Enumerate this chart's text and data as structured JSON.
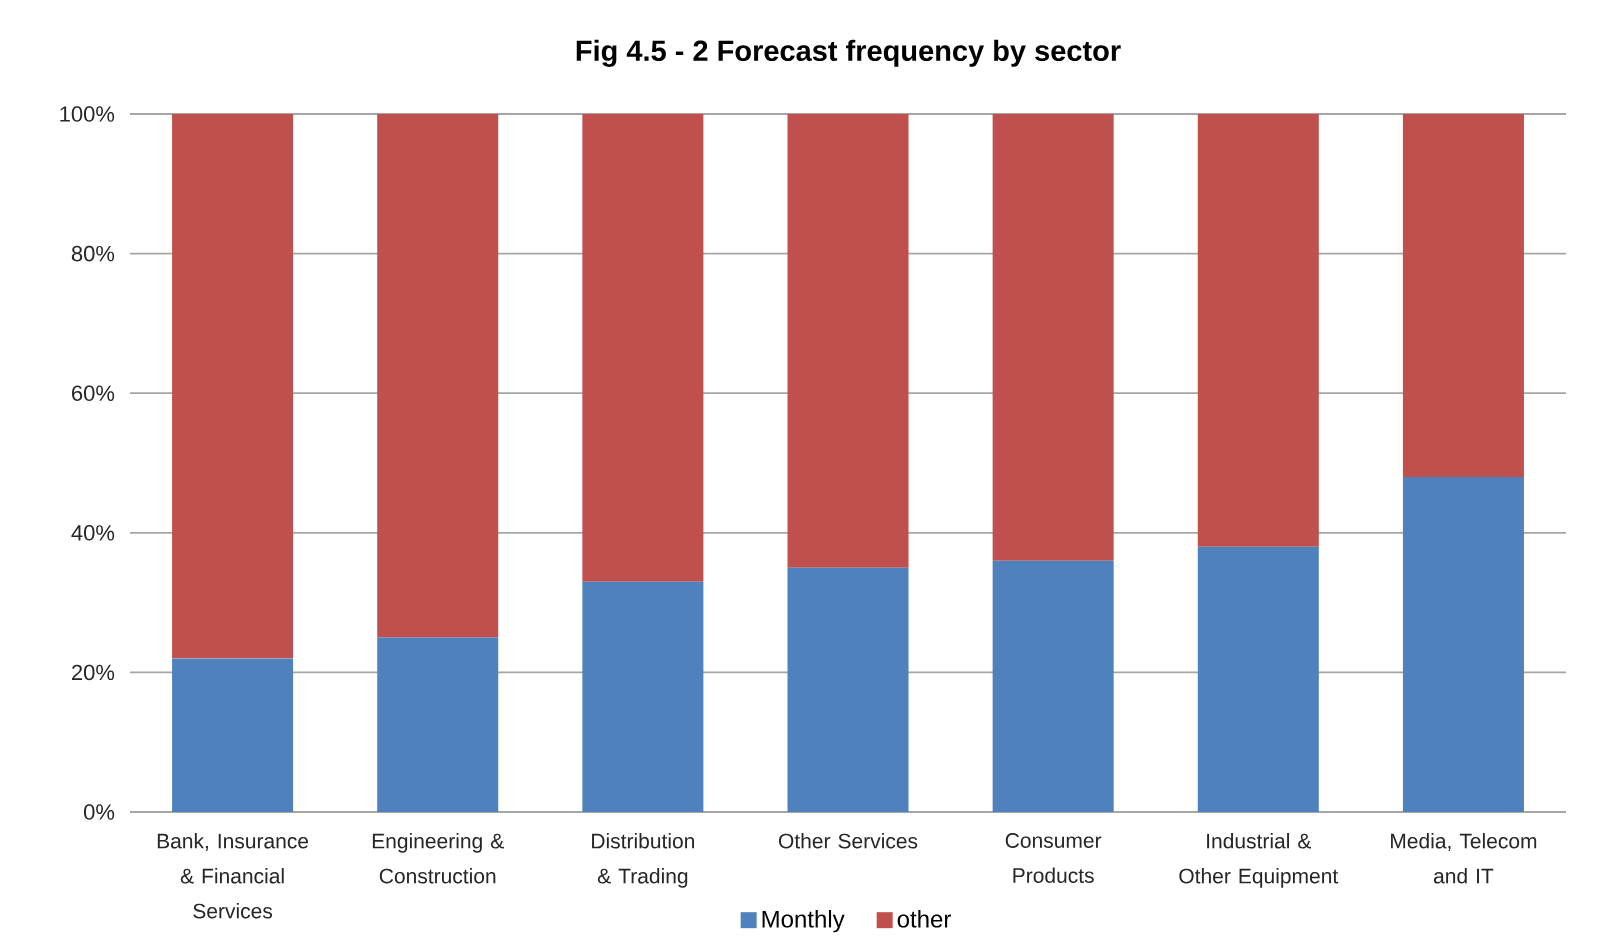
{
  "chart_data": {
    "type": "bar",
    "title": "Fig 4.5 - 2 Forecast frequency by sector",
    "categories": [
      "Bank, Insurance & Financial Services",
      "Engineering & Construction",
      "Distribution & Trading",
      "Other Services",
      "Consumer Products",
      "Industrial & Other Equipment",
      "Media, Telecom and IT"
    ],
    "series": [
      {
        "name": "Monthly",
        "color": "#4f81bd",
        "values": [
          22,
          25,
          33,
          35,
          36,
          38,
          48
        ]
      },
      {
        "name": "other",
        "color": "#c0504d",
        "values": [
          78,
          75,
          67,
          65,
          64,
          62,
          52
        ]
      }
    ],
    "stacked": true,
    "ylim": [
      0,
      100
    ],
    "yticks": [
      {
        "value": 0,
        "label": "0%"
      },
      {
        "value": 20,
        "label": "20%"
      },
      {
        "value": 40,
        "label": "40%"
      },
      {
        "value": 60,
        "label": "60%"
      },
      {
        "value": 80,
        "label": "80%"
      },
      {
        "value": 100,
        "label": "100%"
      }
    ],
    "grid": "y",
    "legend": "bottom"
  }
}
